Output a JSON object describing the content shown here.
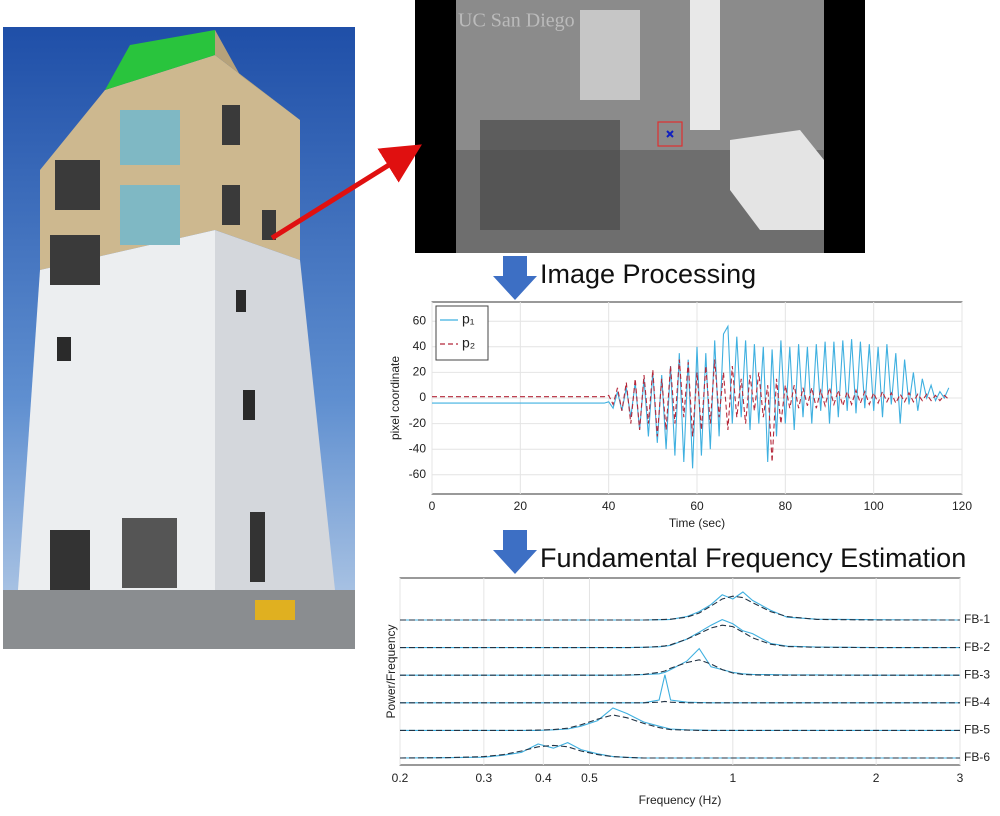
{
  "figure": {
    "camera_watermark": "UC San Diego",
    "step_1": "Image Processing",
    "step_2": "Fundamental Frequency Estimation"
  },
  "chart_data": [
    {
      "type": "line",
      "xlabel": "Time (sec)",
      "ylabel": "pixel coordinate",
      "xlim": [
        0,
        120
      ],
      "ylim": [
        -75,
        75
      ],
      "xticks": [
        0,
        20,
        40,
        60,
        80,
        100,
        120
      ],
      "yticks": [
        -60,
        -40,
        -20,
        0,
        20,
        40,
        60
      ],
      "grid": true,
      "legend": "upper left",
      "x": [
        0,
        1,
        2,
        3,
        4,
        5,
        6,
        7,
        8,
        9,
        10,
        11,
        12,
        13,
        14,
        15,
        16,
        17,
        18,
        19,
        20,
        21,
        22,
        23,
        24,
        25,
        26,
        27,
        28,
        29,
        30,
        31,
        32,
        33,
        34,
        35,
        36,
        37,
        38,
        39,
        40,
        41,
        42,
        43,
        44,
        45,
        46,
        47,
        48,
        49,
        50,
        51,
        52,
        53,
        54,
        55,
        56,
        57,
        58,
        59,
        60,
        61,
        62,
        63,
        64,
        65,
        66,
        67,
        68,
        69,
        70,
        71,
        72,
        73,
        74,
        75,
        76,
        77,
        78,
        79,
        80,
        81,
        82,
        83,
        84,
        85,
        86,
        87,
        88,
        89,
        90,
        91,
        92,
        93,
        94,
        95,
        96,
        97,
        98,
        99,
        100,
        101,
        102,
        103,
        104,
        105,
        106,
        107,
        108,
        109,
        110,
        111,
        112,
        113,
        114,
        115,
        116,
        117
      ],
      "series": [
        {
          "name": "p₁",
          "color": "#3fb0e0",
          "line_style": "solid",
          "values": [
            -4,
            -4,
            -4,
            -4,
            -4,
            -4,
            -4,
            -4,
            -4,
            -4,
            -4,
            -4,
            -4,
            -4,
            -4,
            -4,
            -4,
            -4,
            -4,
            -4,
            -4,
            -4,
            -4,
            -4,
            -4,
            -4,
            -4,
            -4,
            -4,
            -4,
            -4,
            -4,
            -4,
            -4,
            -4,
            -4,
            -4,
            -4,
            -4,
            -4,
            -3,
            -8,
            5,
            -10,
            8,
            -15,
            12,
            -25,
            15,
            -30,
            20,
            -35,
            18,
            -40,
            25,
            -45,
            35,
            -50,
            30,
            -55,
            40,
            -45,
            35,
            -40,
            45,
            -30,
            50,
            56,
            -20,
            48,
            -15,
            45,
            -25,
            42,
            -20,
            40,
            -50,
            38,
            -30,
            45,
            -20,
            40,
            -25,
            42,
            -15,
            40,
            -20,
            42,
            -10,
            44,
            -20,
            44,
            -15,
            45,
            -10,
            46,
            -12,
            44,
            -8,
            42,
            -10,
            40,
            -15,
            42,
            -5,
            35,
            -20,
            30,
            -5,
            20,
            -10,
            15,
            0,
            10,
            -2,
            5,
            0,
            8
          ]
        },
        {
          "name": "p₂",
          "color": "#b5283a",
          "line_style": "dashed",
          "values": [
            1,
            1,
            1,
            1,
            1,
            1,
            1,
            1,
            1,
            1,
            1,
            1,
            1,
            1,
            1,
            1,
            1,
            1,
            1,
            1,
            1,
            1,
            1,
            1,
            1,
            1,
            1,
            1,
            1,
            1,
            1,
            1,
            1,
            1,
            1,
            1,
            1,
            1,
            1,
            1,
            2,
            -5,
            8,
            -10,
            12,
            -20,
            15,
            -25,
            18,
            -20,
            22,
            -30,
            15,
            -25,
            25,
            -20,
            30,
            -15,
            28,
            -30,
            20,
            -25,
            25,
            -20,
            30,
            -15,
            20,
            -25,
            25,
            -15,
            15,
            -20,
            18,
            -10,
            20,
            -15,
            10,
            -50,
            15,
            -20,
            10,
            -8,
            10,
            -8,
            8,
            -6,
            8,
            -8,
            6,
            -6,
            8,
            -5,
            6,
            -6,
            5,
            -5,
            6,
            -4,
            5,
            -5,
            4,
            -4,
            5,
            -3,
            4,
            -4,
            3,
            -3,
            4,
            -3,
            3,
            -2,
            3,
            -2,
            2,
            -2,
            2,
            -1
          ]
        }
      ]
    },
    {
      "type": "ridgeline",
      "xlabel": "Frequency (Hz)",
      "ylabel": "Power/Frequency",
      "log_x": true,
      "xlim": [
        0.2,
        3
      ],
      "ylim": [
        0,
        1
      ],
      "xticks": [
        0.2,
        0.3,
        0.4,
        0.5,
        1,
        2,
        3
      ],
      "grid": true,
      "fit_color": "#223344",
      "x": [
        0.2,
        0.25,
        0.3,
        0.33,
        0.36,
        0.39,
        0.42,
        0.45,
        0.48,
        0.52,
        0.56,
        0.6,
        0.65,
        0.7,
        0.72,
        0.74,
        0.8,
        0.85,
        0.9,
        0.95,
        1.0,
        1.05,
        1.1,
        1.2,
        1.3,
        1.5,
        2,
        3
      ],
      "series": [
        {
          "name": "FB-1",
          "color": "#3fb0e0",
          "values": [
            0,
            0,
            0,
            0,
            0,
            0,
            0,
            0,
            0,
            0,
            0,
            0,
            0,
            0.01,
            0.01,
            0.02,
            0.12,
            0.3,
            0.55,
            0.9,
            0.75,
            1.0,
            0.7,
            0.35,
            0.1,
            0.03,
            0.01,
            0
          ],
          "fit": [
            0,
            0,
            0,
            0,
            0,
            0,
            0,
            0,
            0,
            0,
            0,
            0,
            0,
            0.01,
            0.02,
            0.03,
            0.1,
            0.25,
            0.5,
            0.75,
            0.85,
            0.8,
            0.62,
            0.3,
            0.12,
            0.02,
            0,
            0
          ]
        },
        {
          "name": "FB-2",
          "color": "#3fb0e0",
          "values": [
            0,
            0,
            0,
            0,
            0,
            0,
            0,
            0,
            0,
            0,
            0,
            0,
            0.01,
            0.03,
            0.05,
            0.08,
            0.3,
            0.55,
            0.8,
            1.0,
            0.85,
            0.6,
            0.5,
            0.15,
            0.05,
            0.02,
            0,
            0
          ],
          "fit": [
            0,
            0,
            0,
            0,
            0,
            0,
            0,
            0,
            0,
            0,
            0,
            0,
            0.01,
            0.04,
            0.06,
            0.1,
            0.3,
            0.5,
            0.7,
            0.8,
            0.75,
            0.55,
            0.35,
            0.12,
            0.04,
            0.01,
            0,
            0
          ]
        },
        {
          "name": "FB-3",
          "color": "#3fb0e0",
          "values": [
            0,
            0,
            0,
            0,
            0,
            0,
            0,
            0,
            0,
            0,
            0,
            0,
            0.02,
            0.05,
            0.1,
            0.2,
            0.5,
            0.95,
            0.3,
            0.2,
            0.1,
            0.05,
            0.03,
            0.02,
            0.01,
            0.01,
            0,
            0
          ],
          "fit": [
            0,
            0,
            0,
            0,
            0,
            0,
            0,
            0,
            0,
            0,
            0,
            0.01,
            0.03,
            0.1,
            0.15,
            0.25,
            0.45,
            0.55,
            0.4,
            0.2,
            0.08,
            0.03,
            0.01,
            0,
            0,
            0,
            0,
            0
          ]
        },
        {
          "name": "FB-4",
          "color": "#3fb0e0",
          "values": [
            0,
            0,
            0,
            0,
            0,
            0,
            0,
            0,
            0,
            0,
            0,
            0,
            0,
            0.1,
            1.0,
            0.1,
            0.02,
            0.01,
            0,
            0,
            0,
            0,
            0,
            0,
            0,
            0,
            0,
            0
          ],
          "fit": [
            0,
            0,
            0,
            0,
            0,
            0,
            0,
            0,
            0,
            0,
            0,
            0,
            0,
            0.02,
            0.05,
            0.02,
            0,
            0,
            0,
            0,
            0,
            0,
            0,
            0,
            0,
            0,
            0,
            0
          ]
        },
        {
          "name": "FB-5",
          "color": "#3fb0e0",
          "values": [
            0,
            0,
            0,
            0,
            0,
            0,
            0.02,
            0.05,
            0.15,
            0.35,
            0.8,
            0.6,
            0.3,
            0.15,
            0.1,
            0.05,
            0.02,
            0.01,
            0,
            0,
            0,
            0,
            0,
            0,
            0,
            0,
            0,
            0
          ],
          "fit": [
            0,
            0,
            0,
            0,
            0,
            0.01,
            0.03,
            0.08,
            0.2,
            0.4,
            0.55,
            0.45,
            0.25,
            0.1,
            0.06,
            0.03,
            0.01,
            0,
            0,
            0,
            0,
            0,
            0,
            0,
            0,
            0,
            0,
            0
          ]
        },
        {
          "name": "FB-6",
          "color": "#3fb0e0",
          "values": [
            0,
            0.01,
            0.03,
            0.1,
            0.2,
            0.5,
            0.35,
            0.55,
            0.3,
            0.15,
            0.05,
            0.02,
            0,
            0,
            0,
            0,
            0,
            0,
            0,
            0,
            0,
            0,
            0,
            0,
            0,
            0,
            0,
            0
          ],
          "fit": [
            0,
            0.01,
            0.05,
            0.12,
            0.25,
            0.4,
            0.45,
            0.4,
            0.25,
            0.12,
            0.05,
            0.02,
            0,
            0,
            0,
            0,
            0,
            0,
            0,
            0,
            0,
            0,
            0,
            0,
            0,
            0,
            0,
            0
          ]
        }
      ]
    }
  ]
}
